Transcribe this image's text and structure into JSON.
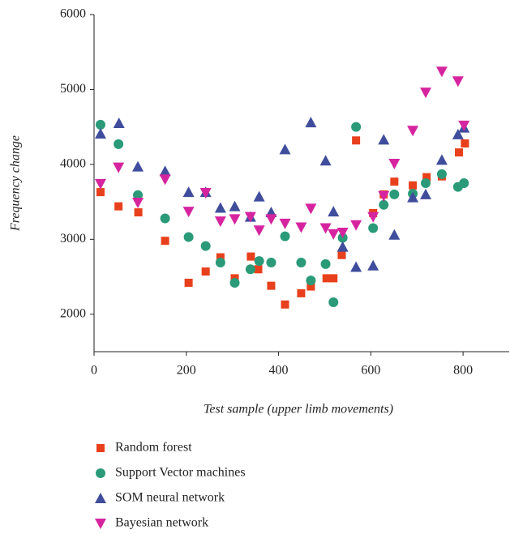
{
  "chart_data": {
    "type": "scatter",
    "x_label": "Test sample (upper limb movements)",
    "y_label": "Frequency change",
    "xlim": [
      0,
      900
    ],
    "ylim": [
      1500,
      6000
    ],
    "xticks": [
      0,
      200,
      400,
      600,
      800
    ],
    "yticks": [
      2000,
      3000,
      4000,
      5000,
      6000
    ],
    "grid": false,
    "legend": "bottom",
    "series": [
      {
        "name": "Random forest",
        "color": "#e8401c",
        "marker": "square",
        "x": [
          14,
          53,
          96,
          154,
          205,
          242,
          274,
          305,
          340,
          356,
          384,
          414,
          449,
          470,
          504,
          519,
          537,
          568,
          605,
          628,
          651,
          691,
          721,
          754,
          791,
          804
        ],
        "values": [
          3630,
          3440,
          3360,
          2980,
          2420,
          2570,
          2760,
          2480,
          2770,
          2600,
          2380,
          2130,
          2280,
          2370,
          2480,
          2480,
          2790,
          4320,
          3350,
          3600,
          3770,
          3720,
          3830,
          3840,
          4160,
          4280
        ]
      },
      {
        "name": "Support Vector machines",
        "color": "#2a9a78",
        "marker": "circle",
        "x": [
          14,
          53,
          95,
          154,
          205,
          242,
          274,
          305,
          339,
          358,
          384,
          414,
          449,
          470,
          502,
          519,
          539,
          568,
          605,
          628,
          651,
          691,
          719,
          754,
          789,
          802
        ],
        "values": [
          4530,
          4270,
          3590,
          3280,
          3030,
          2910,
          2690,
          2420,
          2600,
          2710,
          2690,
          3040,
          2690,
          2450,
          2670,
          2160,
          3020,
          4500,
          3150,
          3460,
          3600,
          3610,
          3750,
          3870,
          3700,
          3750
        ]
      },
      {
        "name": "SOM neural network",
        "color": "#3f4d9c",
        "marker": "triangle",
        "x": [
          14,
          54,
          95,
          154,
          205,
          242,
          274,
          305,
          339,
          358,
          384,
          414,
          470,
          502,
          519,
          539,
          568,
          605,
          628,
          651,
          691,
          719,
          754,
          789,
          802
        ],
        "values": [
          4410,
          4550,
          3970,
          3910,
          3630,
          3630,
          3420,
          3440,
          3300,
          3570,
          3360,
          4200,
          4560,
          4050,
          3370,
          2900,
          2630,
          2650,
          4330,
          3060,
          3560,
          3600,
          4060,
          4400,
          4490
        ]
      },
      {
        "name": "Bayesian network",
        "color": "#d6249f",
        "marker": "triangle-down",
        "x": [
          14,
          53,
          95,
          154,
          205,
          242,
          274,
          305,
          339,
          358,
          384,
          414,
          449,
          470,
          502,
          519,
          539,
          568,
          605,
          628,
          651,
          691,
          719,
          754,
          789,
          802
        ],
        "values": [
          3740,
          3960,
          3490,
          3800,
          3370,
          3620,
          3240,
          3270,
          3300,
          3120,
          3270,
          3210,
          3160,
          3410,
          3150,
          3070,
          3090,
          3190,
          3300,
          3580,
          4010,
          4450,
          4960,
          5240,
          5110,
          4520
        ]
      }
    ]
  }
}
